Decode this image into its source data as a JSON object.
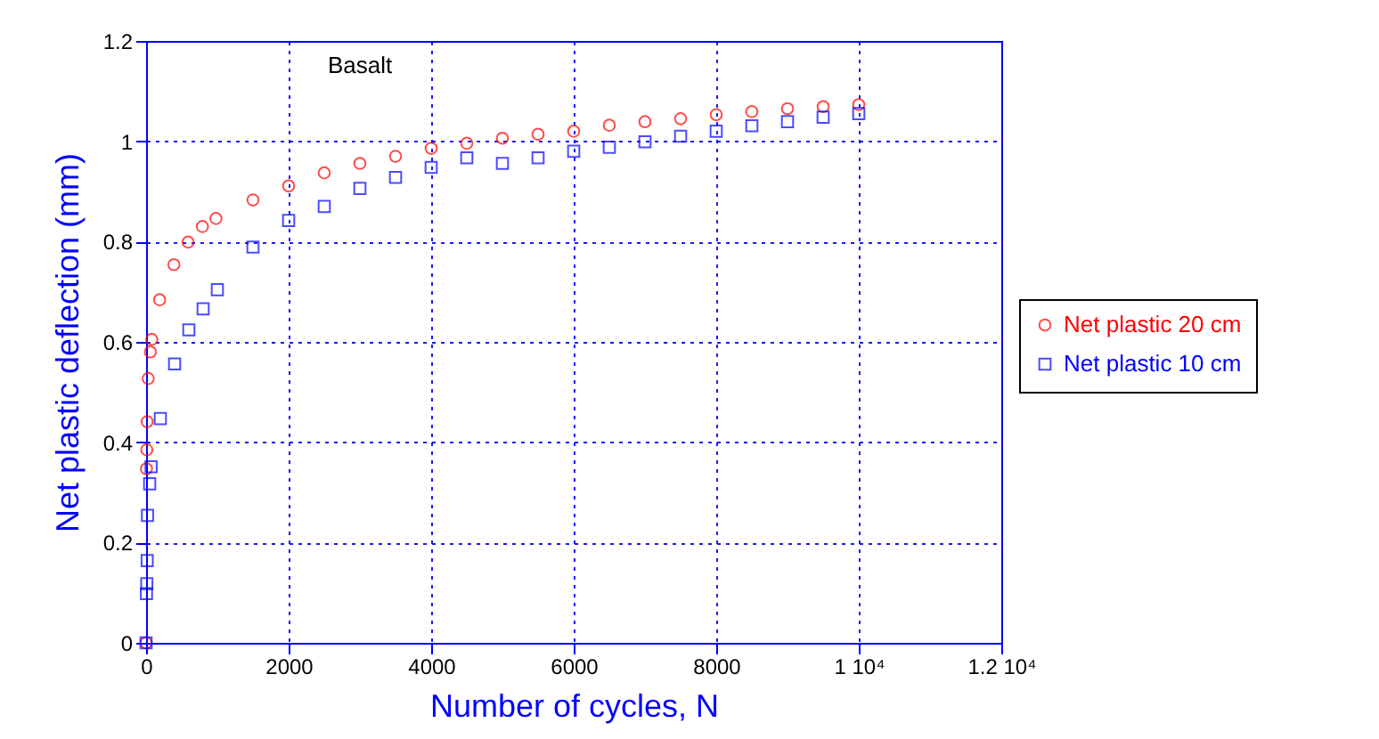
{
  "chart_data": {
    "type": "scatter",
    "xlabel": "Number of cycles, N",
    "ylabel": "Net plastic deflection (mm)",
    "annotations": [
      "Basalt"
    ],
    "xlim": [
      0,
      12000
    ],
    "xticks": [
      0,
      2000,
      4000,
      6000,
      8000,
      {
        "value": 10000,
        "label": "1 10⁴"
      },
      {
        "value": 12000,
        "label": "1.2 10⁴"
      }
    ],
    "ylim": [
      0,
      1.2
    ],
    "yticks": [
      0,
      0.2,
      0.4,
      0.6,
      0.8,
      1,
      1.2
    ],
    "grid": true,
    "legend": "right",
    "series": [
      {
        "name": "Net plastic 20 cm",
        "color": "#ff0000",
        "marker": "circle",
        "x": [
          0,
          5,
          10,
          15,
          30,
          60,
          80,
          190,
          390,
          590,
          790,
          980,
          1500,
          2000,
          2500,
          3000,
          3500,
          4000,
          4500,
          5000,
          5500,
          6000,
          6500,
          7000,
          7500,
          8000,
          8500,
          9000,
          9500,
          10000
        ],
        "values": [
          0,
          0.347,
          0.385,
          0.441,
          0.527,
          0.58,
          0.605,
          0.684,
          0.754,
          0.799,
          0.83,
          0.846,
          0.883,
          0.911,
          0.937,
          0.956,
          0.97,
          0.986,
          0.996,
          1.006,
          1.014,
          1.02,
          1.032,
          1.039,
          1.045,
          1.053,
          1.059,
          1.065,
          1.069,
          1.073
        ]
      },
      {
        "name": "Net plastic 10 cm",
        "color": "#0000ff",
        "marker": "square",
        "x": [
          0,
          5,
          10,
          15,
          20,
          50,
          70,
          200,
          400,
          600,
          800,
          1000,
          1500,
          2000,
          2500,
          3000,
          3500,
          4000,
          4500,
          5000,
          5500,
          6000,
          6500,
          7000,
          7500,
          8000,
          8500,
          9000,
          9500,
          10000
        ],
        "values": [
          0,
          0.098,
          0.118,
          0.164,
          0.254,
          0.317,
          0.351,
          0.447,
          0.556,
          0.624,
          0.666,
          0.704,
          0.789,
          0.842,
          0.87,
          0.906,
          0.928,
          0.948,
          0.967,
          0.956,
          0.967,
          0.98,
          0.988,
          0.999,
          1.01,
          1.02,
          1.031,
          1.039,
          1.048,
          1.055
        ]
      }
    ]
  }
}
